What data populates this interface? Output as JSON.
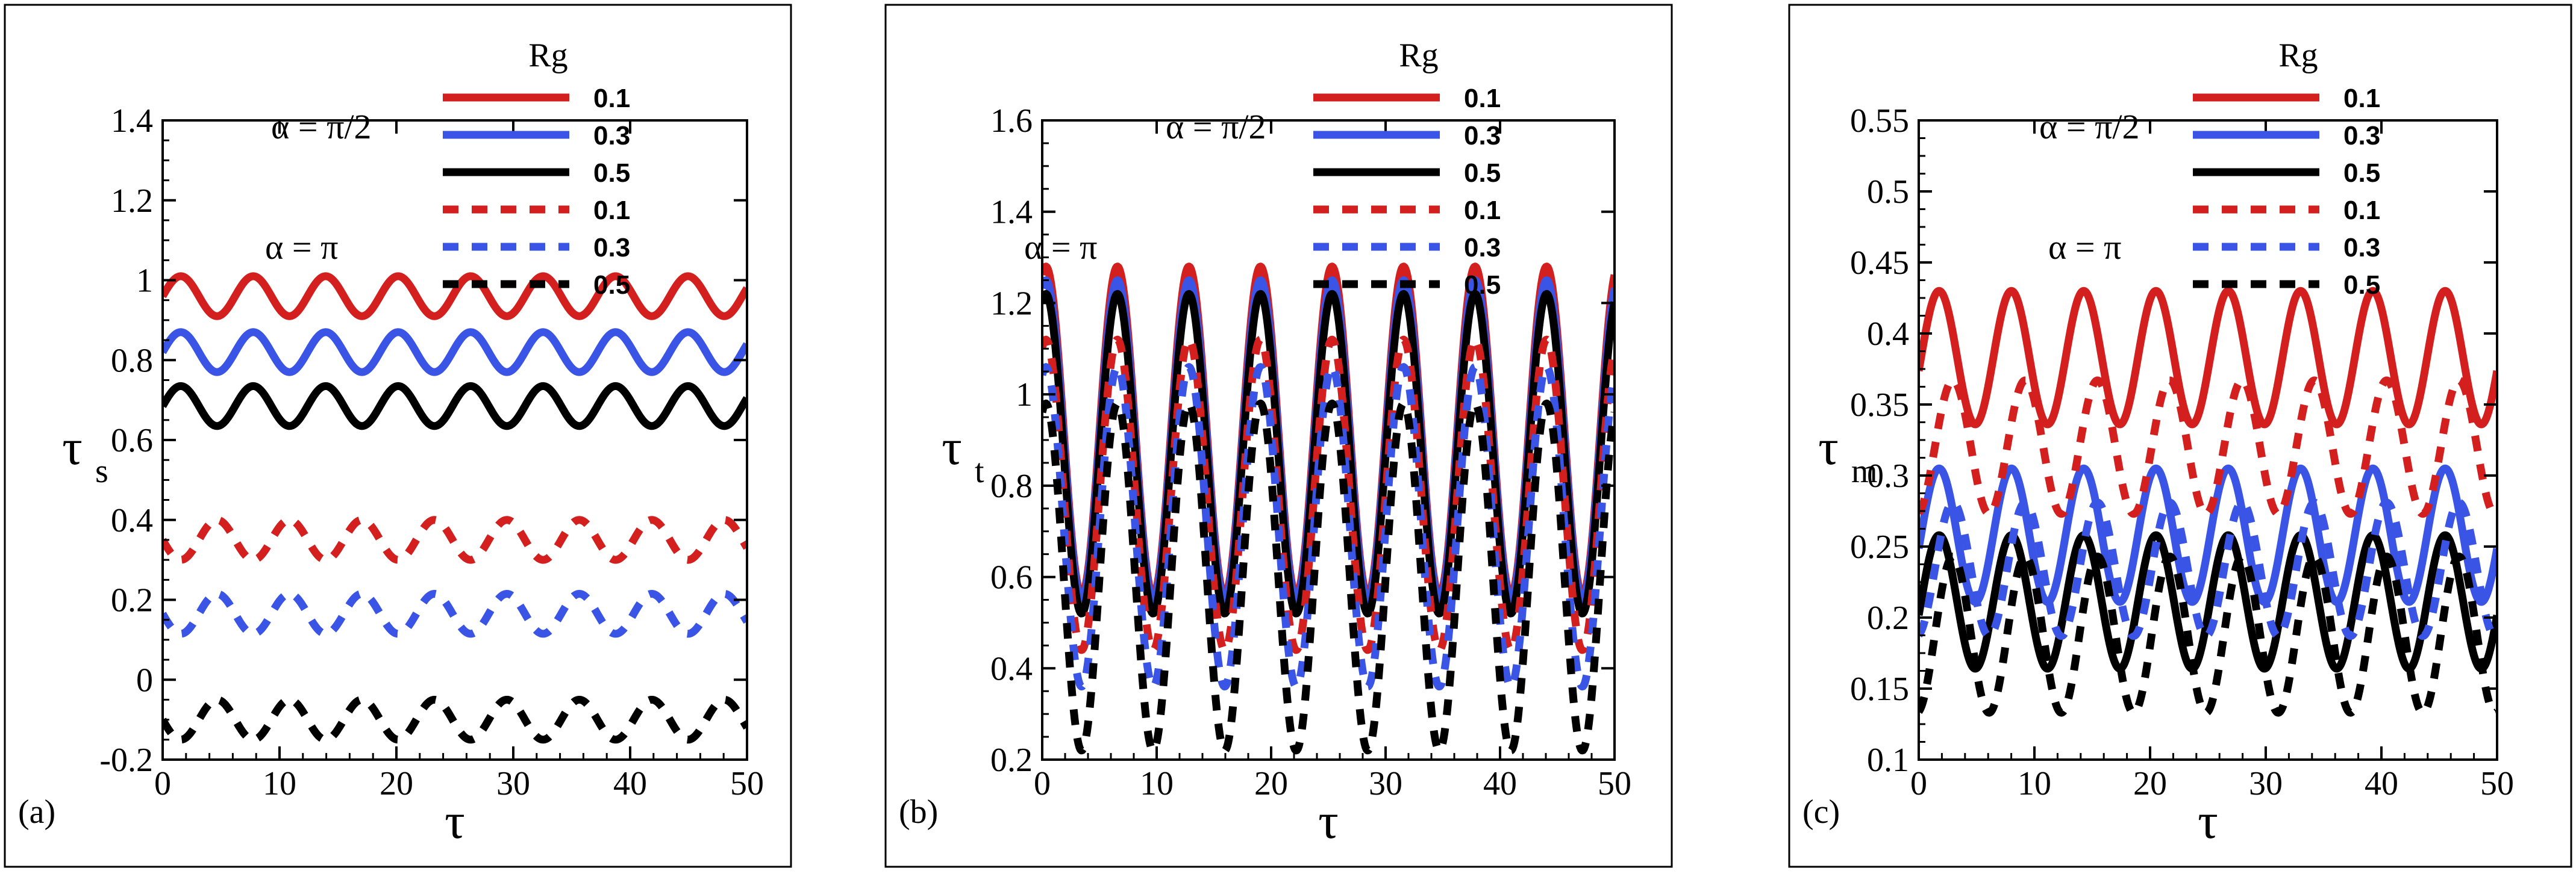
{
  "chart_data": [
    {
      "type": "line",
      "panel_label": "(a)",
      "xlabel": "τ",
      "ylabel": "τ",
      "ylabel_sub": "s",
      "xlim": [
        0,
        50
      ],
      "ylim": [
        -0.2,
        1.4
      ],
      "xticks": [
        "0",
        "10",
        "20",
        "30",
        "40",
        "50"
      ],
      "yticks": [
        "-0.2",
        "0",
        "0.2",
        "0.4",
        "0.6",
        "0.8",
        "1",
        "1.2",
        "1.4"
      ],
      "period": 6.2,
      "legend": {
        "header": "Rg",
        "alpha_solid": "α = π/2",
        "alpha_dashed": "α = π",
        "entries": [
          "0.1",
          "0.3",
          "0.5",
          "0.1",
          "0.3",
          "0.5"
        ]
      },
      "series": [
        {
          "name": "α = π/2, Rg = 0.1",
          "style": "solid",
          "color": "#d41f1f",
          "mean": 0.96,
          "amplitude": 0.05,
          "phase": 0
        },
        {
          "name": "α = π/2, Rg = 0.3",
          "style": "solid",
          "color": "#3a55e6",
          "mean": 0.82,
          "amplitude": 0.05,
          "phase": 0
        },
        {
          "name": "α = π/2, Rg = 0.5",
          "style": "solid",
          "color": "#000000",
          "mean": 0.685,
          "amplitude": 0.05,
          "phase": 0
        },
        {
          "name": "α = π, Rg = 0.1",
          "style": "dashed",
          "color": "#d41f1f",
          "mean": 0.35,
          "amplitude": 0.05,
          "phase": 3.14
        },
        {
          "name": "α = π, Rg = 0.3",
          "style": "dashed",
          "color": "#3a55e6",
          "mean": 0.165,
          "amplitude": 0.05,
          "phase": 3.14
        },
        {
          "name": "α = π, Rg = 0.5",
          "style": "dashed",
          "color": "#000000",
          "mean": -0.1,
          "amplitude": 0.05,
          "phase": 3.14
        }
      ]
    },
    {
      "type": "line",
      "panel_label": "(b)",
      "xlabel": "τ",
      "ylabel": "τ",
      "ylabel_sub": "t",
      "xlim": [
        0,
        50
      ],
      "ylim": [
        0.2,
        1.6
      ],
      "xticks": [
        "0",
        "10",
        "20",
        "30",
        "40",
        "50"
      ],
      "yticks": [
        "0.2",
        "0.4",
        "0.6",
        "0.8",
        "1",
        "1.2",
        "1.4",
        "1.6"
      ],
      "period": 6.25,
      "legend": {
        "header": "Rg",
        "alpha_solid": "α = π/2",
        "alpha_dashed": "α = π",
        "entries": [
          "0.1",
          "0.3",
          "0.5",
          "0.1",
          "0.3",
          "0.5"
        ]
      },
      "series": [
        {
          "name": "α = π/2, Rg = 0.1",
          "style": "solid",
          "color": "#d41f1f",
          "mean": 0.92,
          "amplitude": 0.36,
          "phase": 1.25
        },
        {
          "name": "α = π/2, Rg = 0.3",
          "style": "solid",
          "color": "#3a55e6",
          "mean": 0.9,
          "amplitude": 0.35,
          "phase": 1.25
        },
        {
          "name": "α = π/2, Rg = 0.5",
          "style": "solid",
          "color": "#000000",
          "mean": 0.87,
          "amplitude": 0.35,
          "phase": 1.25
        },
        {
          "name": "α = π, Rg = 0.1",
          "style": "dashed",
          "color": "#d41f1f",
          "mean": 0.78,
          "amplitude": 0.34,
          "phase": 1.25
        },
        {
          "name": "α = π, Rg = 0.3",
          "style": "dashed",
          "color": "#3a55e6",
          "mean": 0.71,
          "amplitude": 0.35,
          "phase": 1.25
        },
        {
          "name": "α = π, Rg = 0.5",
          "style": "dashed",
          "color": "#000000",
          "mean": 0.6,
          "amplitude": 0.38,
          "phase": 1.25
        }
      ]
    },
    {
      "type": "line",
      "panel_label": "(c)",
      "xlabel": "τ",
      "ylabel": "τ",
      "ylabel_sub": "m",
      "xlim": [
        0,
        50
      ],
      "ylim": [
        0.1,
        0.55
      ],
      "xticks": [
        "0",
        "10",
        "20",
        "30",
        "40",
        "50"
      ],
      "yticks": [
        "0.1",
        "0.15",
        "0.2",
        "0.25",
        "0.3",
        "0.35",
        "0.4",
        "0.45",
        "0.5",
        "0.55"
      ],
      "period": 6.25,
      "legend": {
        "header": "Rg",
        "alpha_solid": "α = π/2",
        "alpha_dashed": "α = π",
        "entries": [
          "0.1",
          "0.3",
          "0.5",
          "0.1",
          "0.3",
          "0.5"
        ]
      },
      "series": [
        {
          "name": "α = π/2, Rg = 0.1",
          "style": "solid",
          "color": "#d41f1f",
          "mean": 0.383,
          "amplitude": 0.047,
          "phase": -0.2
        },
        {
          "name": "α = π/2, Rg = 0.3",
          "style": "solid",
          "color": "#3a55e6",
          "mean": 0.258,
          "amplitude": 0.047,
          "phase": -0.2
        },
        {
          "name": "α = π/2, Rg = 0.5",
          "style": "solid",
          "color": "#000000",
          "mean": 0.211,
          "amplitude": 0.047,
          "phase": -0.2
        },
        {
          "name": "α = π, Rg = 0.1",
          "style": "dashed",
          "color": "#d41f1f",
          "mean": 0.32,
          "amplitude": 0.047,
          "phase": -1.4
        },
        {
          "name": "α = π, Rg = 0.3",
          "style": "dashed",
          "color": "#3a55e6",
          "mean": 0.234,
          "amplitude": 0.047,
          "phase": -1.4
        },
        {
          "name": "α = π, Rg = 0.5",
          "style": "dashed",
          "color": "#000000",
          "mean": 0.188,
          "amplitude": 0.055,
          "phase": -1.4
        }
      ]
    }
  ]
}
